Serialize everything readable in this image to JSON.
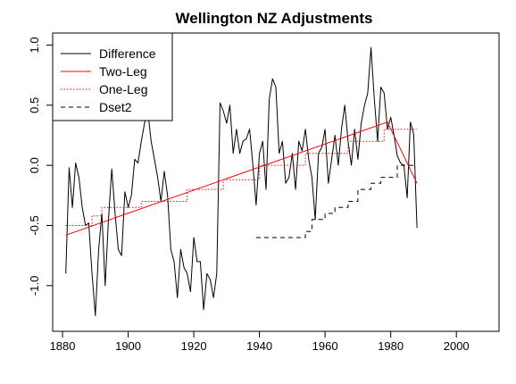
{
  "chart_data": {
    "type": "line",
    "title": "Wellington NZ Adjustments",
    "xlabel": "",
    "ylabel": "",
    "xlim": [
      1877,
      2013
    ],
    "ylim": [
      -1.38,
      1.1
    ],
    "xticks": [
      1880,
      1900,
      1920,
      1940,
      1960,
      1980,
      2000
    ],
    "xtick_labels": [
      "1880",
      "1900",
      "1920",
      "1940",
      "1960",
      "1980",
      "2000"
    ],
    "yticks": [
      -1.0,
      -0.5,
      0.0,
      0.5,
      1.0
    ],
    "ytick_labels": [
      "-1.0",
      "-0.5",
      "0.0",
      "0.5",
      "1.0"
    ],
    "grid": false,
    "legend_position": "top-left",
    "colors": {
      "black": "#000000",
      "red": "#ff0000"
    },
    "series": [
      {
        "name": "Difference",
        "style": "solid",
        "color": "#000000",
        "x": [
          1881,
          1882,
          1883,
          1884,
          1885,
          1886,
          1887,
          1888,
          1889,
          1890,
          1891,
          1892,
          1893,
          1894,
          1895,
          1896,
          1897,
          1898,
          1899,
          1900,
          1901,
          1902,
          1903,
          1904,
          1905,
          1906,
          1907,
          1908,
          1909,
          1910,
          1911,
          1912,
          1913,
          1914,
          1915,
          1916,
          1917,
          1918,
          1919,
          1920,
          1921,
          1922,
          1923,
          1924,
          1925,
          1926,
          1927,
          1928,
          1929,
          1930,
          1931,
          1932,
          1933,
          1934,
          1935,
          1936,
          1937,
          1938,
          1939,
          1940,
          1941,
          1942,
          1943,
          1944,
          1945,
          1946,
          1947,
          1948,
          1949,
          1950,
          1951,
          1952,
          1953,
          1954,
          1955,
          1956,
          1957,
          1958,
          1959,
          1960,
          1961,
          1962,
          1963,
          1964,
          1965,
          1966,
          1967,
          1968,
          1969,
          1970,
          1971,
          1972,
          1973,
          1974,
          1975,
          1976,
          1977,
          1978,
          1979,
          1980,
          1981,
          1982,
          1983,
          1984,
          1985,
          1986,
          1987,
          1988
        ],
        "y": [
          -0.9,
          -0.02,
          -0.35,
          0.02,
          -0.1,
          -0.35,
          -0.5,
          -0.48,
          -0.9,
          -1.25,
          -0.7,
          -0.4,
          -1.0,
          -0.45,
          -0.03,
          -0.4,
          -0.7,
          -0.75,
          -0.22,
          -0.35,
          -0.25,
          0.05,
          0.02,
          0.2,
          0.35,
          0.45,
          0.2,
          0.05,
          -0.1,
          -0.3,
          -0.05,
          -0.25,
          -0.7,
          -0.8,
          -1.1,
          -0.7,
          -0.85,
          -0.9,
          -1.05,
          -0.6,
          -0.8,
          -0.8,
          -1.2,
          -0.9,
          -0.95,
          -1.1,
          -0.9,
          0.52,
          0.45,
          0.35,
          0.5,
          0.1,
          0.3,
          0.1,
          0.2,
          0.22,
          0.3,
          0.0,
          -0.33,
          0.1,
          0.2,
          -0.2,
          0.55,
          0.72,
          0.65,
          0.1,
          0.2,
          -0.15,
          -0.1,
          0.1,
          -0.2,
          0.2,
          0.12,
          0.3,
          0.05,
          -0.1,
          -0.45,
          0.1,
          0.15,
          0.3,
          -0.15,
          0.05,
          0.25,
          0.0,
          0.3,
          0.5,
          0.2,
          0.0,
          0.3,
          0.05,
          0.35,
          0.5,
          0.6,
          0.98,
          0.55,
          0.2,
          0.65,
          0.6,
          0.3,
          0.4,
          0.25,
          0.08,
          0.02,
          0.0,
          -0.27,
          0.36,
          0.26,
          -0.52
        ]
      },
      {
        "name": "Two-Leg",
        "style": "solid",
        "color": "#ff0000",
        "x": [
          1881,
          1979,
          1988
        ],
        "y": [
          -0.58,
          0.36,
          -0.15
        ]
      },
      {
        "name": "One-Leg",
        "style": "dotted",
        "color": "#ff0000",
        "x": [
          1881,
          1889,
          1889,
          1892,
          1892,
          1904,
          1904,
          1918,
          1918,
          1929,
          1929,
          1940,
          1940,
          1954,
          1954,
          1967,
          1967,
          1978,
          1978,
          1988
        ],
        "y": [
          -0.5,
          -0.5,
          -0.42,
          -0.42,
          -0.35,
          -0.35,
          -0.3,
          -0.3,
          -0.2,
          -0.2,
          -0.12,
          -0.12,
          0.0,
          0.0,
          0.1,
          0.1,
          0.2,
          0.2,
          0.3,
          0.3
        ]
      },
      {
        "name": "Dset2",
        "style": "dashed",
        "color": "#000000",
        "x": [
          1939,
          1954,
          1954,
          1956,
          1956,
          1960,
          1960,
          1963,
          1963,
          1967,
          1967,
          1970,
          1970,
          1974,
          1974,
          1977,
          1977,
          1982,
          1982,
          1988
        ],
        "y": [
          -0.6,
          -0.6,
          -0.55,
          -0.55,
          -0.45,
          -0.45,
          -0.4,
          -0.4,
          -0.35,
          -0.35,
          -0.3,
          -0.3,
          -0.2,
          -0.2,
          -0.15,
          -0.15,
          -0.1,
          -0.1,
          0.0,
          0.0
        ]
      }
    ]
  }
}
